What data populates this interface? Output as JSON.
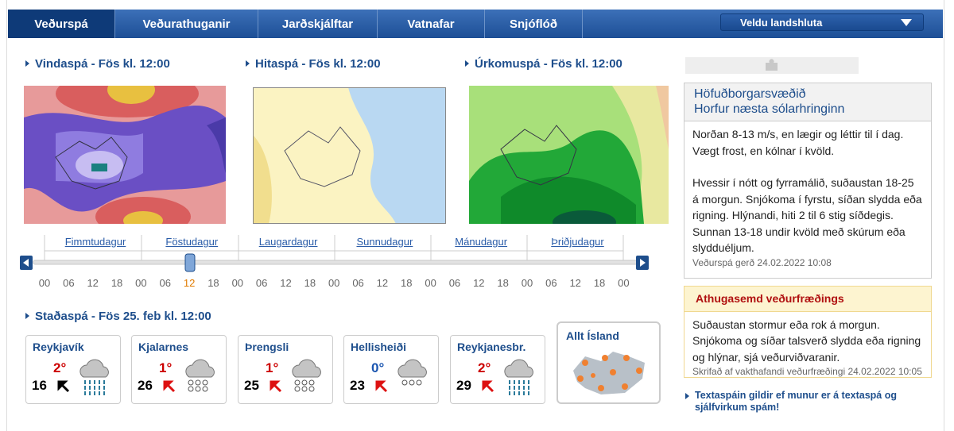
{
  "nav": {
    "tabs": [
      "Veðurspá",
      "Veðurathuganir",
      "Jarðskjálftar",
      "Vatnafar",
      "Snjóflóð"
    ],
    "region_select": "Veldu landshluta"
  },
  "maps": [
    {
      "title": "Vindaspá - Fös kl. 12:00"
    },
    {
      "title": "Hitaspá - Fös kl. 12:00"
    },
    {
      "title": "Úrkomuspá - Fös kl. 12:00"
    }
  ],
  "timeline": {
    "days": [
      "Fimmtudagur",
      "Föstudagur",
      "Laugardagur",
      "Sunnudagur",
      "Mánudagur",
      "Þriðjudagur"
    ],
    "hours": [
      "00",
      "06",
      "12",
      "18",
      "00",
      "06",
      "12",
      "18",
      "00",
      "06",
      "12",
      "18",
      "00",
      "06",
      "12",
      "18",
      "00",
      "06",
      "12",
      "18",
      "00",
      "06",
      "12",
      "18",
      "00"
    ],
    "selected_color": "#e07b00"
  },
  "station_forecast": {
    "title": "Staðaspá - Fös 25. feb  kl. 12:00",
    "stations": [
      {
        "name": "Reykjavík",
        "temp": "2°",
        "temp_color": "#cc0000",
        "wind": 16,
        "arrow_color": "#000000",
        "icon": "rain"
      },
      {
        "name": "Kjalarnes",
        "temp": "1°",
        "temp_color": "#cc0000",
        "wind": 26,
        "arrow_color": "#dd1111",
        "icon": "snow"
      },
      {
        "name": "Þrengsli",
        "temp": "1°",
        "temp_color": "#cc0000",
        "wind": 25,
        "arrow_color": "#dd1111",
        "icon": "snow"
      },
      {
        "name": "Hellisheiði",
        "temp": "0°",
        "temp_color": "#1a55b0",
        "wind": 23,
        "arrow_color": "#dd1111",
        "icon": "lightsnow"
      },
      {
        "name": "Reykjanesbr.",
        "temp": "2°",
        "temp_color": "#cc0000",
        "wind": 29,
        "arrow_color": "#dd1111",
        "icon": "rain"
      }
    ],
    "all_iceland": "Allt Ísland"
  },
  "sidebar": {
    "region_title": "Höfuðborgarsvæðið",
    "region_subtitle": "Horfur næsta sólarhringinn",
    "paragraphs": [
      "Norðan 8-13 m/s, en lægir og léttir til í dag. Vægt frost, en kólnar í kvöld.",
      "Hvessir í nótt og fyrramálið, suðaustan 18-25 á morgun. Snjókoma í fyrstu, síðan slydda eða rigning. Hlýnandi, hiti 2 til 6 stig síðdegis. Sunnan 13-18 undir kvöld með skúrum eða slydduéljum."
    ],
    "issued": "Veðurspá gerð 24.02.2022 10:08"
  },
  "remarks": {
    "title": "Athugasemd veðurfræðings",
    "text": "Suðaustan stormur eða rok á morgun. Snjókoma og síðar talsverð slydda eða rigning og hlýnar, sjá veðurviðvaranir.",
    "issued": "Skrifað af vakthafandi veðurfræðingi 24.02.2022 10:05"
  },
  "note": "Textaspáin gildir ef munur er á textaspá og sjálfvirkum spám!"
}
